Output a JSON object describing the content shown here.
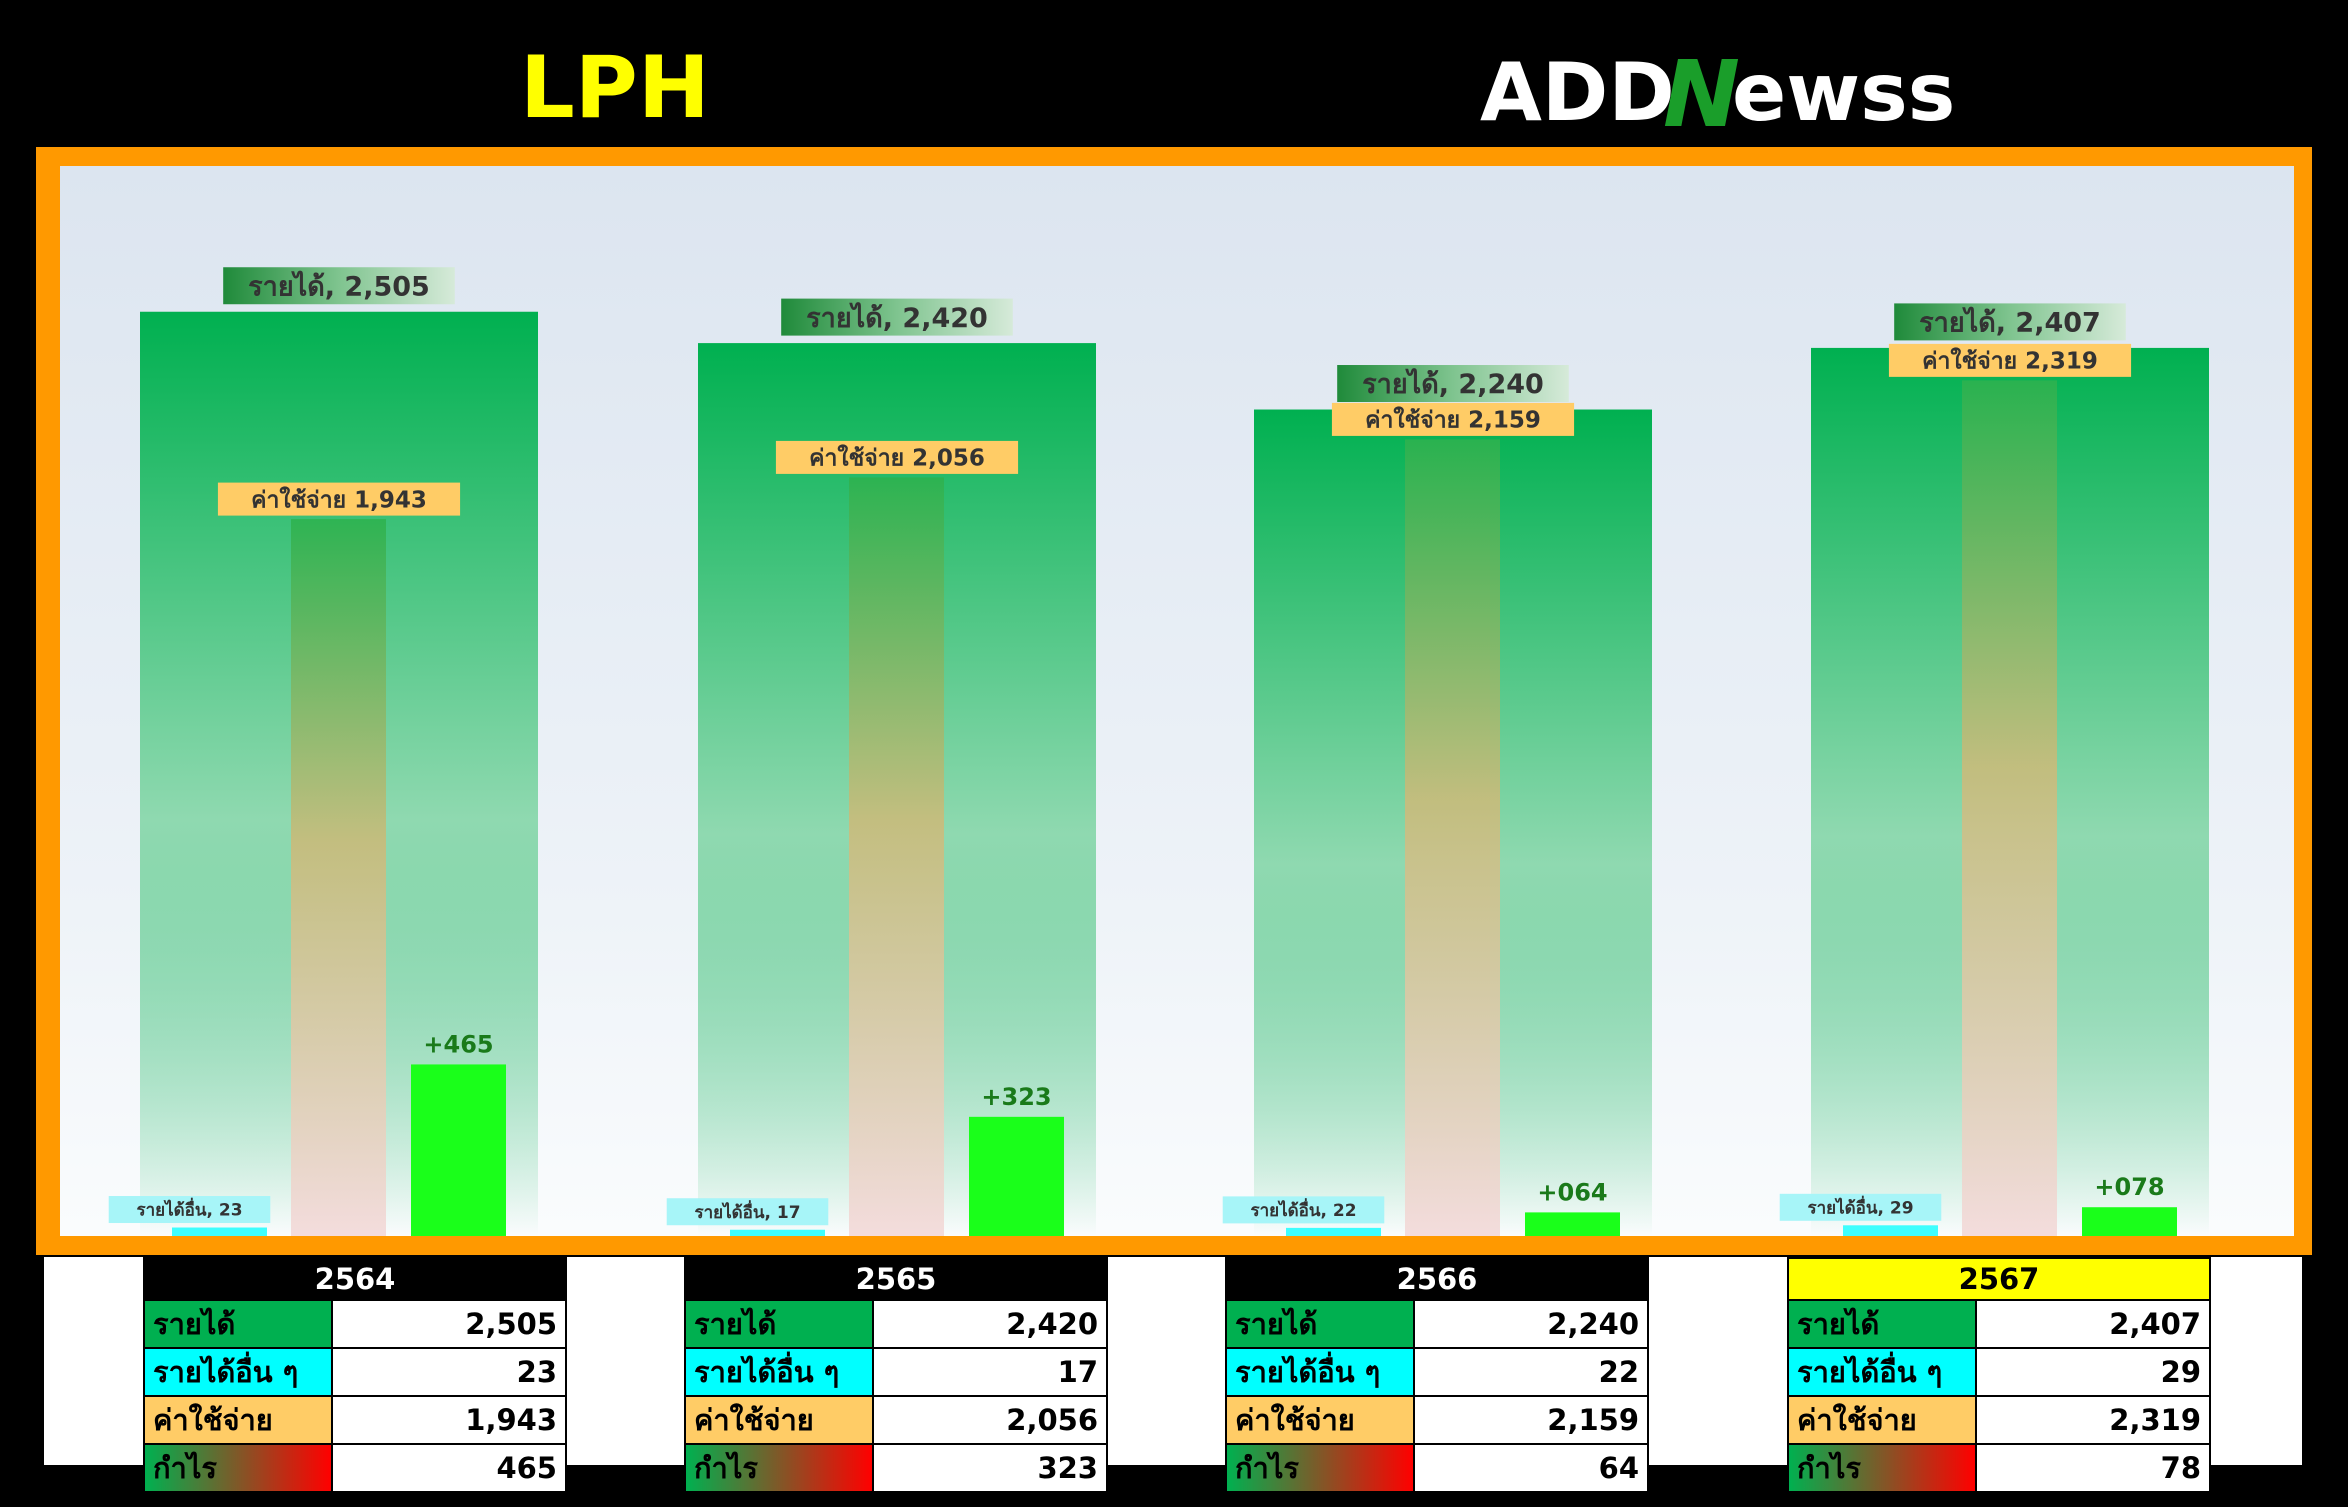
{
  "ticker": "LPH",
  "logo": {
    "part1": "ADD",
    "part2": "N",
    "part3": "ewss"
  },
  "chart_data": {
    "type": "bar",
    "categories": [
      "2564",
      "2565",
      "2566",
      "2567"
    ],
    "highlight_category": "2567",
    "series": [
      {
        "name": "รายได้",
        "values": [
          2505,
          2420,
          2240,
          2407
        ],
        "color": "#00b050"
      },
      {
        "name": "รายได้อื่น ๆ",
        "values": [
          23,
          17,
          22,
          29
        ],
        "color": "#00ffff"
      },
      {
        "name": "ค่าใช้จ่าย",
        "values": [
          1943,
          2056,
          2159,
          2319
        ],
        "color": "#ffcc66"
      },
      {
        "name": "กำไร",
        "values": [
          465,
          323,
          64,
          78
        ],
        "color": "#1aff1a"
      }
    ],
    "data_labels": {
      "revenue": [
        "รายได้, 2,505",
        "รายได้, 2,420",
        "รายได้, 2,240",
        "รายได้, 2,407"
      ],
      "other": [
        "รายได้อื่น, 23",
        "รายได้อื่น, 17",
        "รายได้อื่น, 22",
        "รายได้อื่น, 29"
      ],
      "expense": [
        "ค่าใช้จ่าย 1,943",
        "ค่าใช้จ่าย 2,056",
        "ค่าใช้จ่าย 2,159",
        "ค่าใช้จ่าย 2,319"
      ],
      "profit": [
        "+465",
        "+323",
        "+064",
        "+078"
      ]
    },
    "ylim": [
      0,
      2900
    ],
    "grid": false,
    "legend": "none"
  },
  "tables": [
    {
      "year": "2564",
      "rows": [
        {
          "label": "รายได้",
          "value": "2,505"
        },
        {
          "label": "รายได้อื่น ๆ",
          "value": "23"
        },
        {
          "label": "ค่าใช้จ่าย",
          "value": "1,943"
        },
        {
          "label": "กำไร",
          "value": "465"
        }
      ]
    },
    {
      "year": "2565",
      "rows": [
        {
          "label": "รายได้",
          "value": "2,420"
        },
        {
          "label": "รายได้อื่น ๆ",
          "value": "17"
        },
        {
          "label": "ค่าใช้จ่าย",
          "value": "2,056"
        },
        {
          "label": "กำไร",
          "value": "323"
        }
      ]
    },
    {
      "year": "2566",
      "rows": [
        {
          "label": "รายได้",
          "value": "2,240"
        },
        {
          "label": "รายได้อื่น ๆ",
          "value": "22"
        },
        {
          "label": "ค่าใช้จ่าย",
          "value": "2,159"
        },
        {
          "label": "กำไร",
          "value": "64"
        }
      ]
    },
    {
      "year": "2567",
      "rows": [
        {
          "label": "รายได้",
          "value": "2,407"
        },
        {
          "label": "รายได้อื่น ๆ",
          "value": "29"
        },
        {
          "label": "ค่าใช้จ่าย",
          "value": "2,319"
        },
        {
          "label": "กำไร",
          "value": "78"
        }
      ]
    }
  ]
}
